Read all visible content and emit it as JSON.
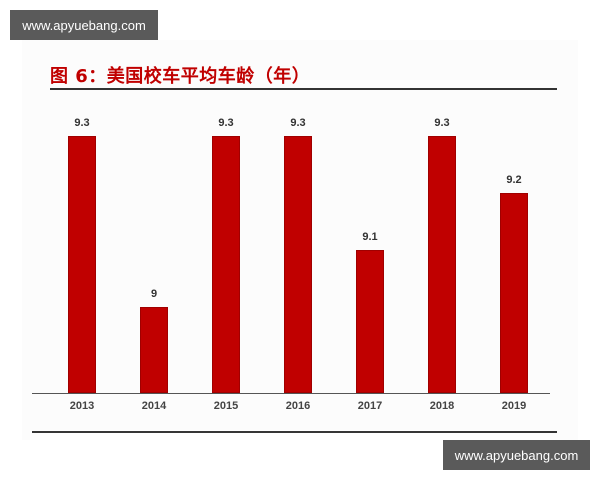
{
  "watermarks": {
    "top": "www.apyuebang.com",
    "bottom": "www.apyuebang.com"
  },
  "title": "图 6：美国校车平均车龄（年）",
  "colors": {
    "bar": "#c00000",
    "title": "#c00000"
  },
  "chart_data": {
    "type": "bar",
    "title": "图 6：美国校车平均车龄（年）",
    "xlabel": "",
    "ylabel": "",
    "categories": [
      "2013",
      "2014",
      "2015",
      "2016",
      "2017",
      "2018",
      "2019"
    ],
    "values": [
      9.3,
      9,
      9.3,
      9.3,
      9.1,
      9.3,
      9.2
    ],
    "value_labels": [
      "9.3",
      "9",
      "9.3",
      "9.3",
      "9.1",
      "9.3",
      "9.2"
    ],
    "grid": false,
    "legend": null
  }
}
